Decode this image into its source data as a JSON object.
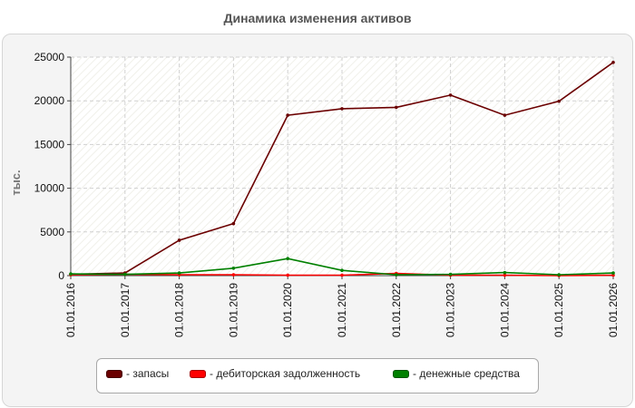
{
  "page": {
    "title": "Динамика изменения активов"
  },
  "legend": {
    "items": [
      {
        "label": "- запасы",
        "color": "#6b0000"
      },
      {
        "label": "- дебиторская задолженность",
        "color": "#ff0000"
      },
      {
        "label": "- денежные средства",
        "color": "#008000"
      }
    ]
  },
  "chart_data": {
    "type": "line",
    "title": "Динамика изменения активов",
    "ylabel": "тыс.",
    "xlabel": "",
    "ylim": [
      0,
      25000
    ],
    "yticks": [
      0,
      5000,
      10000,
      15000,
      20000,
      25000
    ],
    "grid": true,
    "legend_position": "bottom",
    "categories": [
      "01.01.2016",
      "01.01.2017",
      "01.01.2018",
      "01.01.2019",
      "01.01.2020",
      "01.01.2021",
      "01.01.2022",
      "01.01.2023",
      "01.01.2024",
      "01.01.2025",
      "01.01.2026"
    ],
    "series": [
      {
        "name": "- запасы",
        "color": "#6b0000",
        "values": [
          150,
          300,
          4050,
          5950,
          18350,
          19100,
          19250,
          20650,
          18350,
          19950,
          24400
        ]
      },
      {
        "name": "- дебиторская задолженность",
        "color": "#ff0000",
        "values": [
          100,
          150,
          100,
          100,
          50,
          50,
          250,
          50,
          50,
          0,
          50
        ]
      },
      {
        "name": "- денежные средства",
        "color": "#008000",
        "values": [
          200,
          150,
          300,
          850,
          1950,
          600,
          100,
          150,
          350,
          100,
          300
        ]
      }
    ]
  }
}
